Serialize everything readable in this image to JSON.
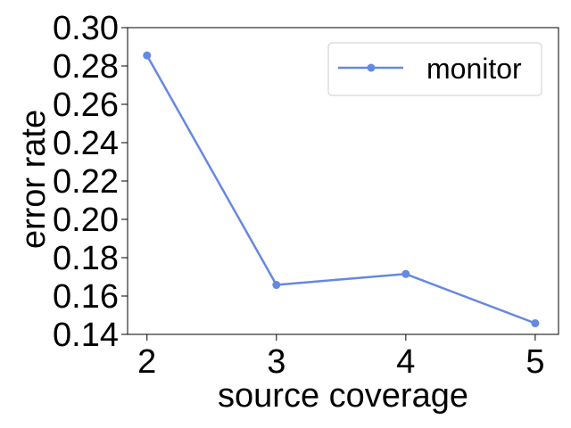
{
  "chart_data": {
    "type": "line",
    "title": "",
    "xlabel": "source coverage",
    "ylabel": "error rate",
    "x": [
      2,
      3,
      4,
      5
    ],
    "xticks": [
      2,
      3,
      4,
      5
    ],
    "xtick_labels": [
      "2",
      "3",
      "4",
      "5"
    ],
    "xlim": [
      1.85,
      5.18
    ],
    "ylim": [
      0.14,
      0.3
    ],
    "yticks": [
      0.14,
      0.16,
      0.18,
      0.2,
      0.22,
      0.24,
      0.26,
      0.28,
      0.3
    ],
    "ytick_labels": [
      "0.14",
      "0.16",
      "0.18",
      "0.20",
      "0.22",
      "0.24",
      "0.26",
      "0.28",
      "0.30"
    ],
    "grid": false,
    "legend_position": "top-right",
    "series": [
      {
        "name": "monitor",
        "values": [
          0.2855,
          0.1658,
          0.1715,
          0.1458
        ],
        "color": "#6688e0",
        "marker": "circle"
      }
    ]
  }
}
